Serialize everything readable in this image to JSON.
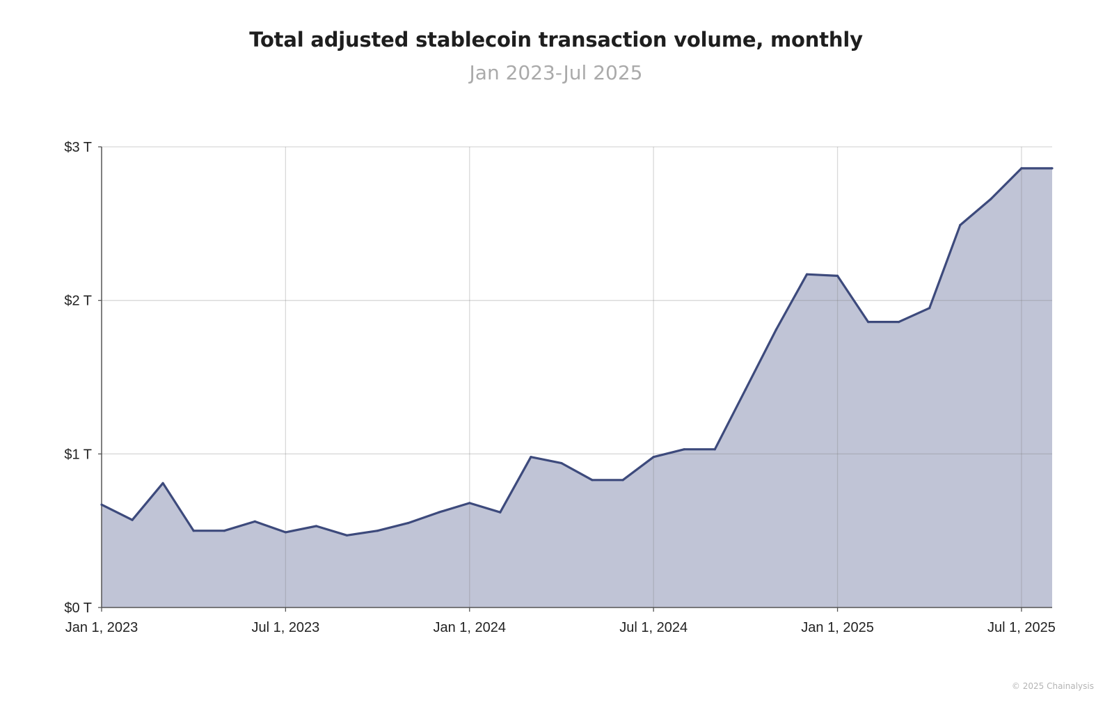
{
  "chart_data": {
    "type": "area",
    "title": "Total adjusted stablecoin transaction volume, monthly",
    "subtitle": "Jan 2023-Jul 2025",
    "xlabel": "",
    "ylabel": "",
    "x": [
      "2023-01",
      "2023-02",
      "2023-03",
      "2023-04",
      "2023-05",
      "2023-06",
      "2023-07",
      "2023-08",
      "2023-09",
      "2023-10",
      "2023-11",
      "2023-12",
      "2024-01",
      "2024-02",
      "2024-03",
      "2024-04",
      "2024-05",
      "2024-06",
      "2024-07",
      "2024-08",
      "2024-09",
      "2024-10",
      "2024-11",
      "2024-12",
      "2025-01",
      "2025-02",
      "2025-03",
      "2025-04",
      "2025-05",
      "2025-06",
      "2025-07",
      "2025-08"
    ],
    "series": [
      {
        "values": [
          0.67,
          0.57,
          0.81,
          0.5,
          0.5,
          0.56,
          0.49,
          0.53,
          0.47,
          0.5,
          0.55,
          0.62,
          0.68,
          0.62,
          0.98,
          0.94,
          0.83,
          0.83,
          0.98,
          1.03,
          1.03,
          1.42,
          1.81,
          2.17,
          2.16,
          1.86,
          1.86,
          1.95,
          2.49,
          2.66,
          2.86,
          2.86
        ]
      }
    ],
    "xticks": [
      "Jan 1, 2023",
      "Jul 1, 2023",
      "Jan 1, 2024",
      "Jul 1, 2024",
      "Jan 1, 2025",
      "Jul 1, 2025"
    ],
    "yticks": [
      "$0 T",
      "$1 T",
      "$2 T",
      "$3 T"
    ],
    "ylim": [
      0,
      3
    ],
    "grid": true,
    "legend": "none",
    "colors": {
      "line": "#3d4a7c",
      "fill": "#c0c4d6",
      "grid": "#dcdcdc"
    }
  },
  "footer": {
    "credit": "© 2025 Chainalysis"
  }
}
